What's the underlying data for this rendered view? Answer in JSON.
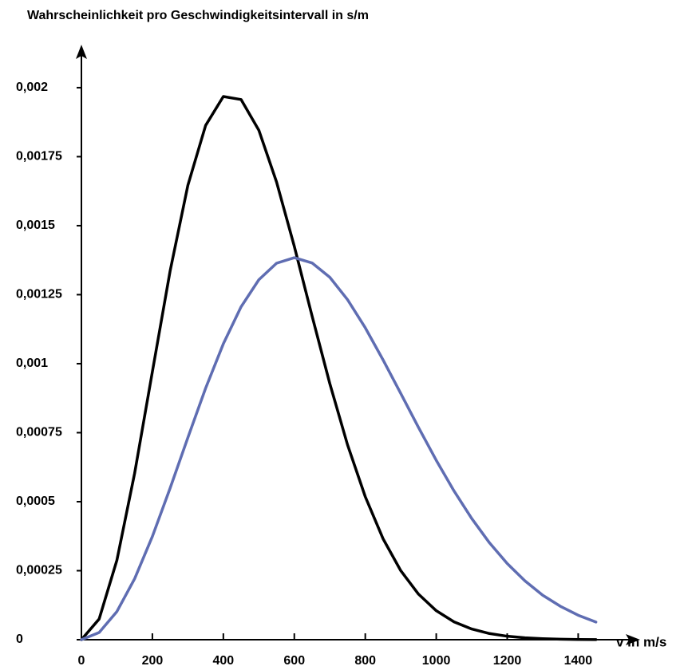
{
  "chart_data": {
    "type": "line",
    "title": "Wahrscheinlichkeit pro Geschwindigkeitsintervall  in  s/m",
    "x_label": "v in m/s",
    "x": [
      0,
      50,
      100,
      150,
      200,
      250,
      300,
      350,
      400,
      450,
      500,
      550,
      600,
      650,
      700,
      750,
      800,
      850,
      900,
      950,
      1000,
      1050,
      1100,
      1150,
      1200,
      1250,
      1300,
      1350,
      1400,
      1450
    ],
    "series": [
      {
        "color": "#000000",
        "values": [
          0,
          7.5e-05,
          0.000288,
          0.000603,
          0.000971,
          0.001336,
          0.001646,
          0.001863,
          0.001968,
          0.001957,
          0.001846,
          0.001658,
          0.001425,
          0.001173,
          0.000928,
          0.000706,
          0.000518,
          0.000366,
          0.00025,
          0.000165,
          0.000105,
          6.48e-05,
          3.87e-05,
          2.23e-05,
          1.25e-05,
          6.8e-06,
          3.6e-06,
          1.8e-06,
          9e-07,
          4e-07
        ]
      },
      {
        "color": "#5f6db2",
        "values": [
          0,
          2.6e-05,
          0.000102,
          0.000221,
          0.000374,
          0.000549,
          0.000732,
          0.000911,
          0.001072,
          0.001206,
          0.001304,
          0.001364,
          0.001384,
          0.001365,
          0.001313,
          0.001232,
          0.00113,
          0.001014,
          0.000892,
          0.000769,
          0.00065,
          0.000539,
          0.000439,
          0.000351,
          0.000276,
          0.000213,
          0.000161,
          0.000121,
          8.85e-05,
          6.39e-05
        ]
      }
    ],
    "xlim": [
      0,
      1570
    ],
    "ylim": [
      0,
      0.00215
    ],
    "xticks": [
      0,
      200,
      400,
      600,
      800,
      1000,
      1200,
      1400
    ],
    "yticks": [
      0,
      {
        "value": 0.00025,
        "label": "0,00025"
      },
      {
        "value": 0.0005,
        "label": "0,0005"
      },
      {
        "value": 0.00075,
        "label": "0,00075"
      },
      {
        "value": 0.001,
        "label": "0,001"
      },
      {
        "value": 0.00125,
        "label": "0,00125"
      },
      {
        "value": 0.0015,
        "label": "0,0015"
      },
      {
        "value": 0.00175,
        "label": "0,00175"
      },
      {
        "value": 0.002,
        "label": "0,002"
      }
    ],
    "grid": false
  }
}
